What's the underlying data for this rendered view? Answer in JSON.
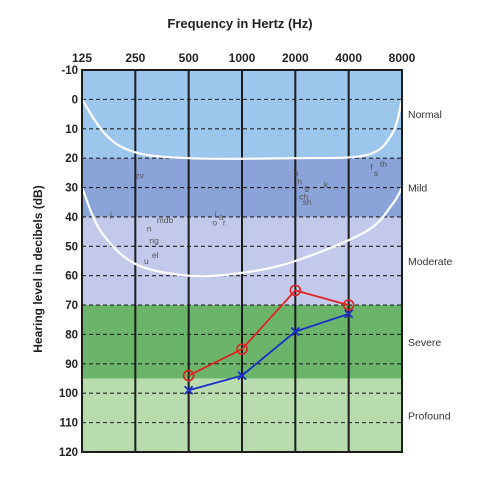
{
  "chart_data": {
    "type": "line",
    "title": "Frequency in Hertz (Hz)",
    "ylabel": "Hearing level in decibels (dB)",
    "x_ticks": [
      "125",
      "250",
      "500",
      "1000",
      "2000",
      "4000",
      "8000"
    ],
    "y_ticks": [
      -10,
      0,
      10,
      20,
      30,
      40,
      50,
      60,
      70,
      80,
      90,
      100,
      110,
      120
    ],
    "ylim": [
      -10,
      120
    ],
    "y_inverted": true,
    "grid": true,
    "bands": [
      {
        "label": "Normal",
        "from": -10,
        "to": 20,
        "color": "#9cc6ec"
      },
      {
        "label": "Mild",
        "from": 20,
        "to": 40,
        "color": "#8aa3d9"
      },
      {
        "label": "Moderate",
        "from": 40,
        "to": 70,
        "color": "#c3c9ea"
      },
      {
        "label": "Severe",
        "from": 70,
        "to": 95,
        "color": "#6bb56b"
      },
      {
        "label": "Profound",
        "from": 95,
        "to": 120,
        "color": "#b9dcae"
      }
    ],
    "series": [
      {
        "color": "#dd2222",
        "marker": "circle",
        "x": [
          "500",
          "1000",
          "2000",
          "4000"
        ],
        "values": [
          94,
          85,
          65,
          70
        ]
      },
      {
        "color": "#1a2ec8",
        "marker": "x",
        "x": [
          "500",
          "1000",
          "2000",
          "4000"
        ],
        "values": [
          99,
          94,
          79,
          73
        ]
      }
    ],
    "speech_sounds": [
      {
        "text": "zv",
        "x": 250,
        "y": 27
      },
      {
        "text": "j",
        "x": 180,
        "y": 40
      },
      {
        "text": "mdb",
        "x": 330,
        "y": 42
      },
      {
        "text": "n",
        "x": 290,
        "y": 45
      },
      {
        "text": "ng",
        "x": 300,
        "y": 49
      },
      {
        "text": "el",
        "x": 310,
        "y": 54
      },
      {
        "text": "u",
        "x": 280,
        "y": 56
      },
      {
        "text": "i",
        "x": 700,
        "y": 40
      },
      {
        "text": "a",
        "x": 740,
        "y": 41
      },
      {
        "text": "o",
        "x": 680,
        "y": 43
      },
      {
        "text": "r",
        "x": 780,
        "y": 43
      },
      {
        "text": "p",
        "x": 1950,
        "y": 26
      },
      {
        "text": "h",
        "x": 2050,
        "y": 29
      },
      {
        "text": "g",
        "x": 2250,
        "y": 31
      },
      {
        "text": "ch",
        "x": 2100,
        "y": 34
      },
      {
        "text": "sh",
        "x": 2200,
        "y": 36
      },
      {
        "text": "k",
        "x": 2900,
        "y": 30
      },
      {
        "text": "f",
        "x": 5300,
        "y": 24
      },
      {
        "text": "s",
        "x": 5550,
        "y": 26
      },
      {
        "text": "th",
        "x": 6000,
        "y": 23
      }
    ],
    "banana_upper_db": [
      {
        "freq": 125,
        "db": 0
      },
      {
        "freq": 170,
        "db": 12
      },
      {
        "freq": 250,
        "db": 18
      },
      {
        "freq": 500,
        "db": 20
      },
      {
        "freq": 2000,
        "db": 20
      },
      {
        "freq": 5000,
        "db": 19
      },
      {
        "freq": 7000,
        "db": 12
      },
      {
        "freq": 8000,
        "db": 0
      }
    ],
    "banana_lower_db": [
      {
        "freq": 125,
        "db": 30
      },
      {
        "freq": 160,
        "db": 45
      },
      {
        "freq": 250,
        "db": 56
      },
      {
        "freq": 500,
        "db": 60
      },
      {
        "freq": 1000,
        "db": 59
      },
      {
        "freq": 2000,
        "db": 55
      },
      {
        "freq": 5000,
        "db": 45
      },
      {
        "freq": 7000,
        "db": 36
      },
      {
        "freq": 8000,
        "db": 30
      }
    ]
  }
}
